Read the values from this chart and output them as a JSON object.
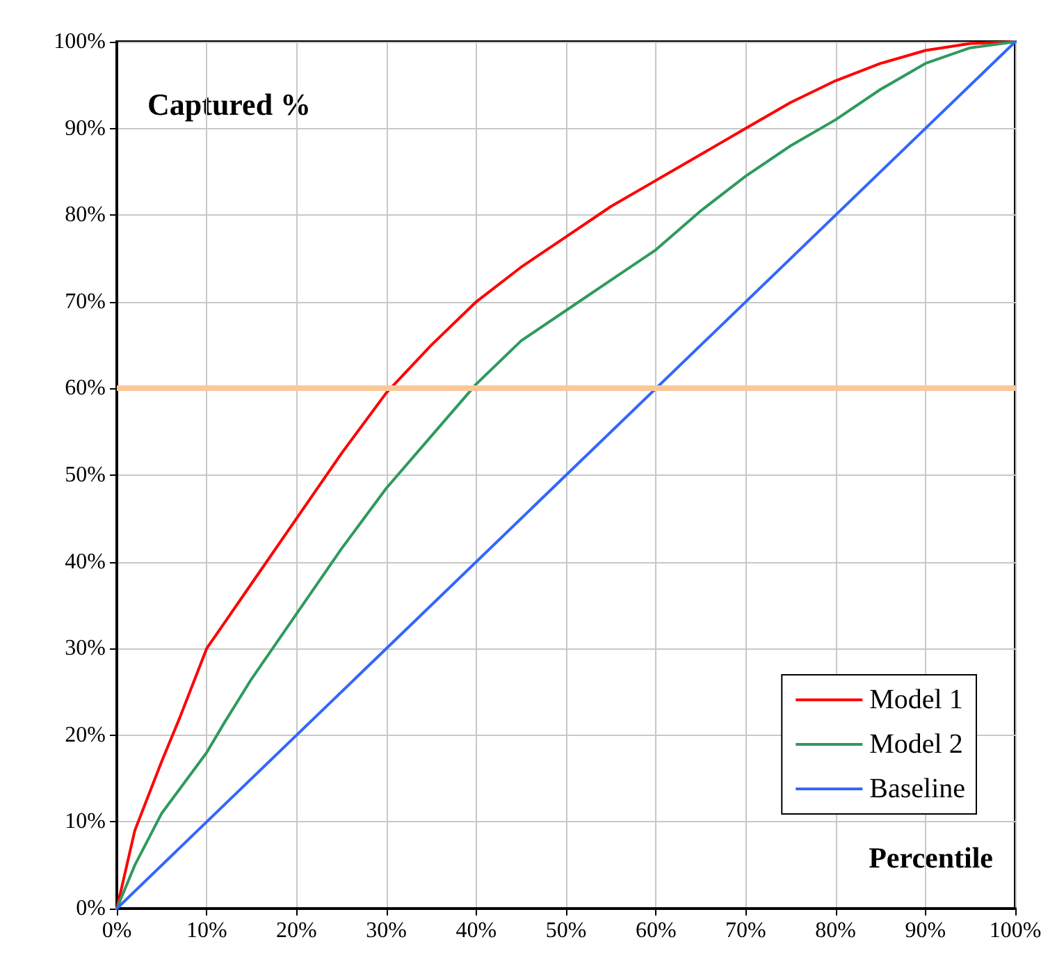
{
  "chart_data": {
    "type": "line",
    "ylabel": "Captured %",
    "xlabel": "Percentile",
    "xlim": [
      0,
      100
    ],
    "ylim": [
      0,
      100
    ],
    "xticks": [
      {
        "value": 0,
        "label": "0%"
      },
      {
        "value": 10,
        "label": "10%"
      },
      {
        "value": 20,
        "label": "20%"
      },
      {
        "value": 30,
        "label": "30%"
      },
      {
        "value": 40,
        "label": "40%"
      },
      {
        "value": 50,
        "label": "50%"
      },
      {
        "value": 60,
        "label": "60%"
      },
      {
        "value": 70,
        "label": "70%"
      },
      {
        "value": 80,
        "label": "80%"
      },
      {
        "value": 90,
        "label": "90%"
      },
      {
        "value": 100,
        "label": "100%"
      }
    ],
    "yticks": [
      {
        "value": 0,
        "label": "0%"
      },
      {
        "value": 10,
        "label": "10%"
      },
      {
        "value": 20,
        "label": "20%"
      },
      {
        "value": 30,
        "label": "30%"
      },
      {
        "value": 40,
        "label": "40%"
      },
      {
        "value": 50,
        "label": "50%"
      },
      {
        "value": 60,
        "label": "60%"
      },
      {
        "value": 70,
        "label": "70%"
      },
      {
        "value": 80,
        "label": "80%"
      },
      {
        "value": 90,
        "label": "90%"
      },
      {
        "value": 100,
        "label": "100%"
      }
    ],
    "series": [
      {
        "name": "Model 1",
        "color": "#ff0000",
        "x": [
          0,
          2,
          5,
          7,
          10,
          12,
          15,
          20,
          25,
          30,
          35,
          40,
          45,
          50,
          55,
          60,
          65,
          70,
          75,
          80,
          85,
          90,
          95,
          100
        ],
        "values": [
          0,
          9,
          17,
          22,
          30,
          33,
          37.5,
          45,
          52.5,
          59.5,
          65,
          70,
          74,
          77.5,
          81,
          84,
          87,
          90,
          93,
          95.5,
          97.5,
          99,
          99.8,
          100
        ]
      },
      {
        "name": "Model 2",
        "color": "#2e9a5e",
        "x": [
          0,
          2,
          5,
          10,
          12,
          15,
          20,
          25,
          30,
          35,
          40,
          45,
          50,
          55,
          60,
          65,
          70,
          75,
          80,
          85,
          90,
          95,
          100
        ],
        "values": [
          0,
          5,
          11,
          18,
          21.5,
          26.5,
          34,
          41.5,
          48.5,
          54.5,
          60.5,
          65.5,
          69,
          72.5,
          76,
          80.5,
          84.5,
          88,
          91,
          94.5,
          97.5,
          99.3,
          100
        ]
      },
      {
        "name": "Baseline",
        "color": "#3366ff",
        "x": [
          0,
          100
        ],
        "values": [
          0,
          100
        ]
      }
    ],
    "ref_lines": [
      {
        "axis": "y",
        "value": 60,
        "color": "#fac898"
      }
    ],
    "grid": true,
    "legend": "bottom right",
    "marker": "none",
    "line_style": "solid"
  }
}
